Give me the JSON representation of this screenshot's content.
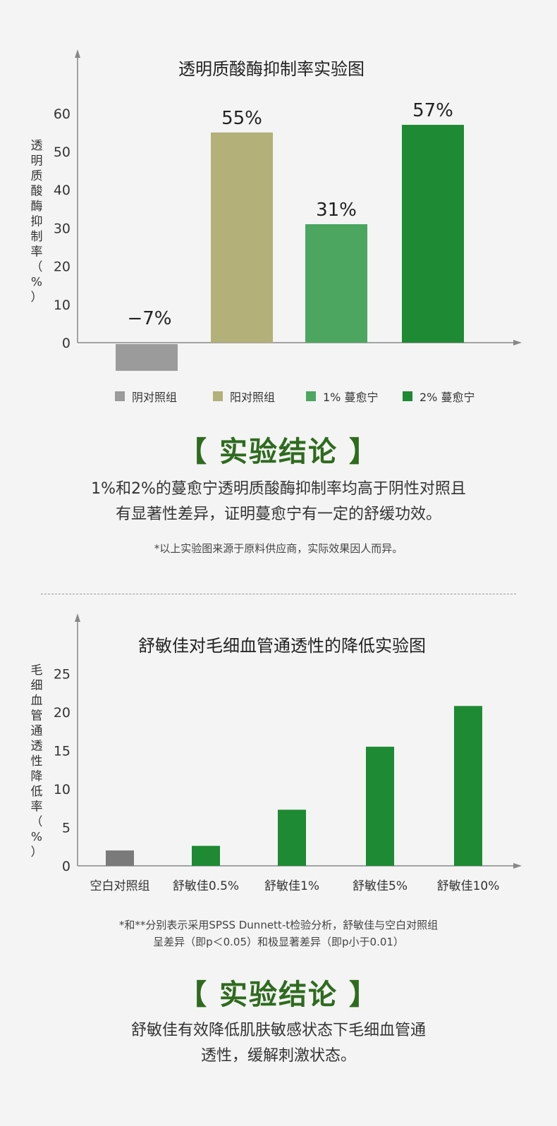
{
  "colors": {
    "negative_control": "#9b9b9b",
    "positive_control": "#b3b07a",
    "low_dose": "#4ca660",
    "high_dose": "#1e8a33",
    "blank_control": "#7a7a7a",
    "treatment": "#1e8a33",
    "conclusion": "#2e6b1e"
  },
  "chart1_labels": [
    "−7%",
    "55%",
    "31%",
    "57%"
  ],
  "legend": [
    {
      "label": "阴对照组",
      "color": "#9b9b9b"
    },
    {
      "label": "阳对照组",
      "color": "#b3b07a"
    },
    {
      "label": "1% 蔓愈宁",
      "color": "#4ca660"
    },
    {
      "label": "2% 蔓愈宁",
      "color": "#1e8a33"
    }
  ],
  "conclusion1": {
    "title": "【 实验结论 】",
    "line1": "1%和2%的蔓愈宁透明质酸酶抑制率均高于阴性对照且",
    "line2": "有显著性差异，证明蔓愈宁有一定的舒缓功效。",
    "note": "*以上实验图来源于原料供应商，实际效果因人而异。"
  },
  "note2": {
    "line1": "*和**分别表示采用SPSS Dunnett-t检验分析，舒敏佳与空白对照组",
    "line2": "呈差异（即p＜0.05）和极显著差异（即p小于0.01）"
  },
  "conclusion2": {
    "title": "【 实验结论 】",
    "line1": "舒敏佳有效降低肌肤敏感状态下毛细血管通",
    "line2": "透性，缓解刺激状态。"
  },
  "chart_data": [
    {
      "type": "bar",
      "title": "透明质酸酶抑制率实验图",
      "ylabel": "透明质酸酶抑制率（%）",
      "xlabel": "",
      "categories": [
        "阴对照组",
        "阳对照组",
        "1% 蔓愈宁",
        "2% 蔓愈宁"
      ],
      "values": [
        -7,
        55,
        31,
        57
      ],
      "data_labels": [
        "−7%",
        "55%",
        "31%",
        "57%"
      ],
      "ylim": [
        -7,
        60
      ],
      "yticks": [
        0,
        10,
        20,
        30,
        40,
        50,
        60
      ],
      "legend_position": "bottom",
      "grid": false
    },
    {
      "type": "bar",
      "title": "舒敏佳对毛细血管通透性的降低实验图",
      "ylabel": "毛细血管通透性降低率（%）",
      "xlabel": "",
      "categories": [
        "空白对照组",
        "舒敏佳0.5%",
        "舒敏佳1%",
        "舒敏佳5%",
        "舒敏佳10%"
      ],
      "values": [
        2,
        2.6,
        7.3,
        15.5,
        20.8
      ],
      "ylim": [
        0,
        25
      ],
      "yticks": [
        0,
        5,
        10,
        15,
        20,
        25
      ],
      "grid": false
    }
  ]
}
